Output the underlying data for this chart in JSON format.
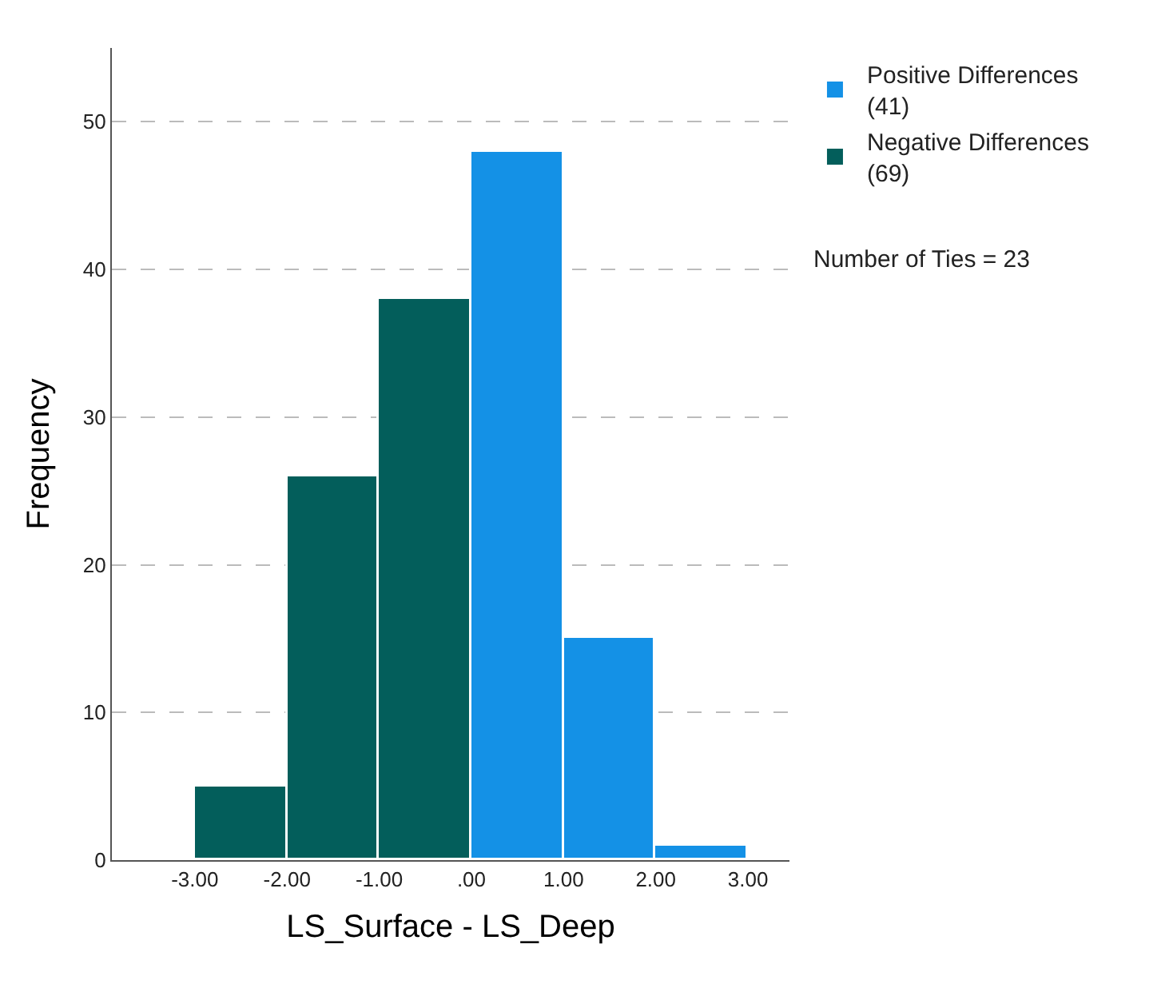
{
  "chart_data": {
    "type": "histogram",
    "xlabel": "LS_Surface - LS_Deep",
    "ylabel": "Frequency",
    "bins": [
      -3,
      -2,
      -1,
      0,
      1,
      2,
      3
    ],
    "series": [
      {
        "name": "Positive Differences (41)",
        "color": "#1491e6",
        "values": [
          null,
          null,
          null,
          48,
          15,
          1
        ]
      },
      {
        "name": "Negative Differences (69)",
        "color": "#035e5b",
        "values": [
          5,
          26,
          38,
          null,
          null,
          null
        ]
      }
    ],
    "xlim": [
      -3.9,
      3.45
    ],
    "xticks": [
      {
        "value": -3,
        "label": "-3.00"
      },
      {
        "value": -2,
        "label": "-2.00"
      },
      {
        "value": -1,
        "label": "-1.00"
      },
      {
        "value": 0,
        "label": ".00"
      },
      {
        "value": 1,
        "label": "1.00"
      },
      {
        "value": 2,
        "label": "2.00"
      },
      {
        "value": 3,
        "label": "3.00"
      }
    ],
    "ylim": [
      0,
      55
    ],
    "yticks": [
      0,
      10,
      20,
      30,
      40,
      50
    ],
    "grid": "y",
    "legend": "top right",
    "annotations": [
      "Number of Ties = 23"
    ]
  }
}
